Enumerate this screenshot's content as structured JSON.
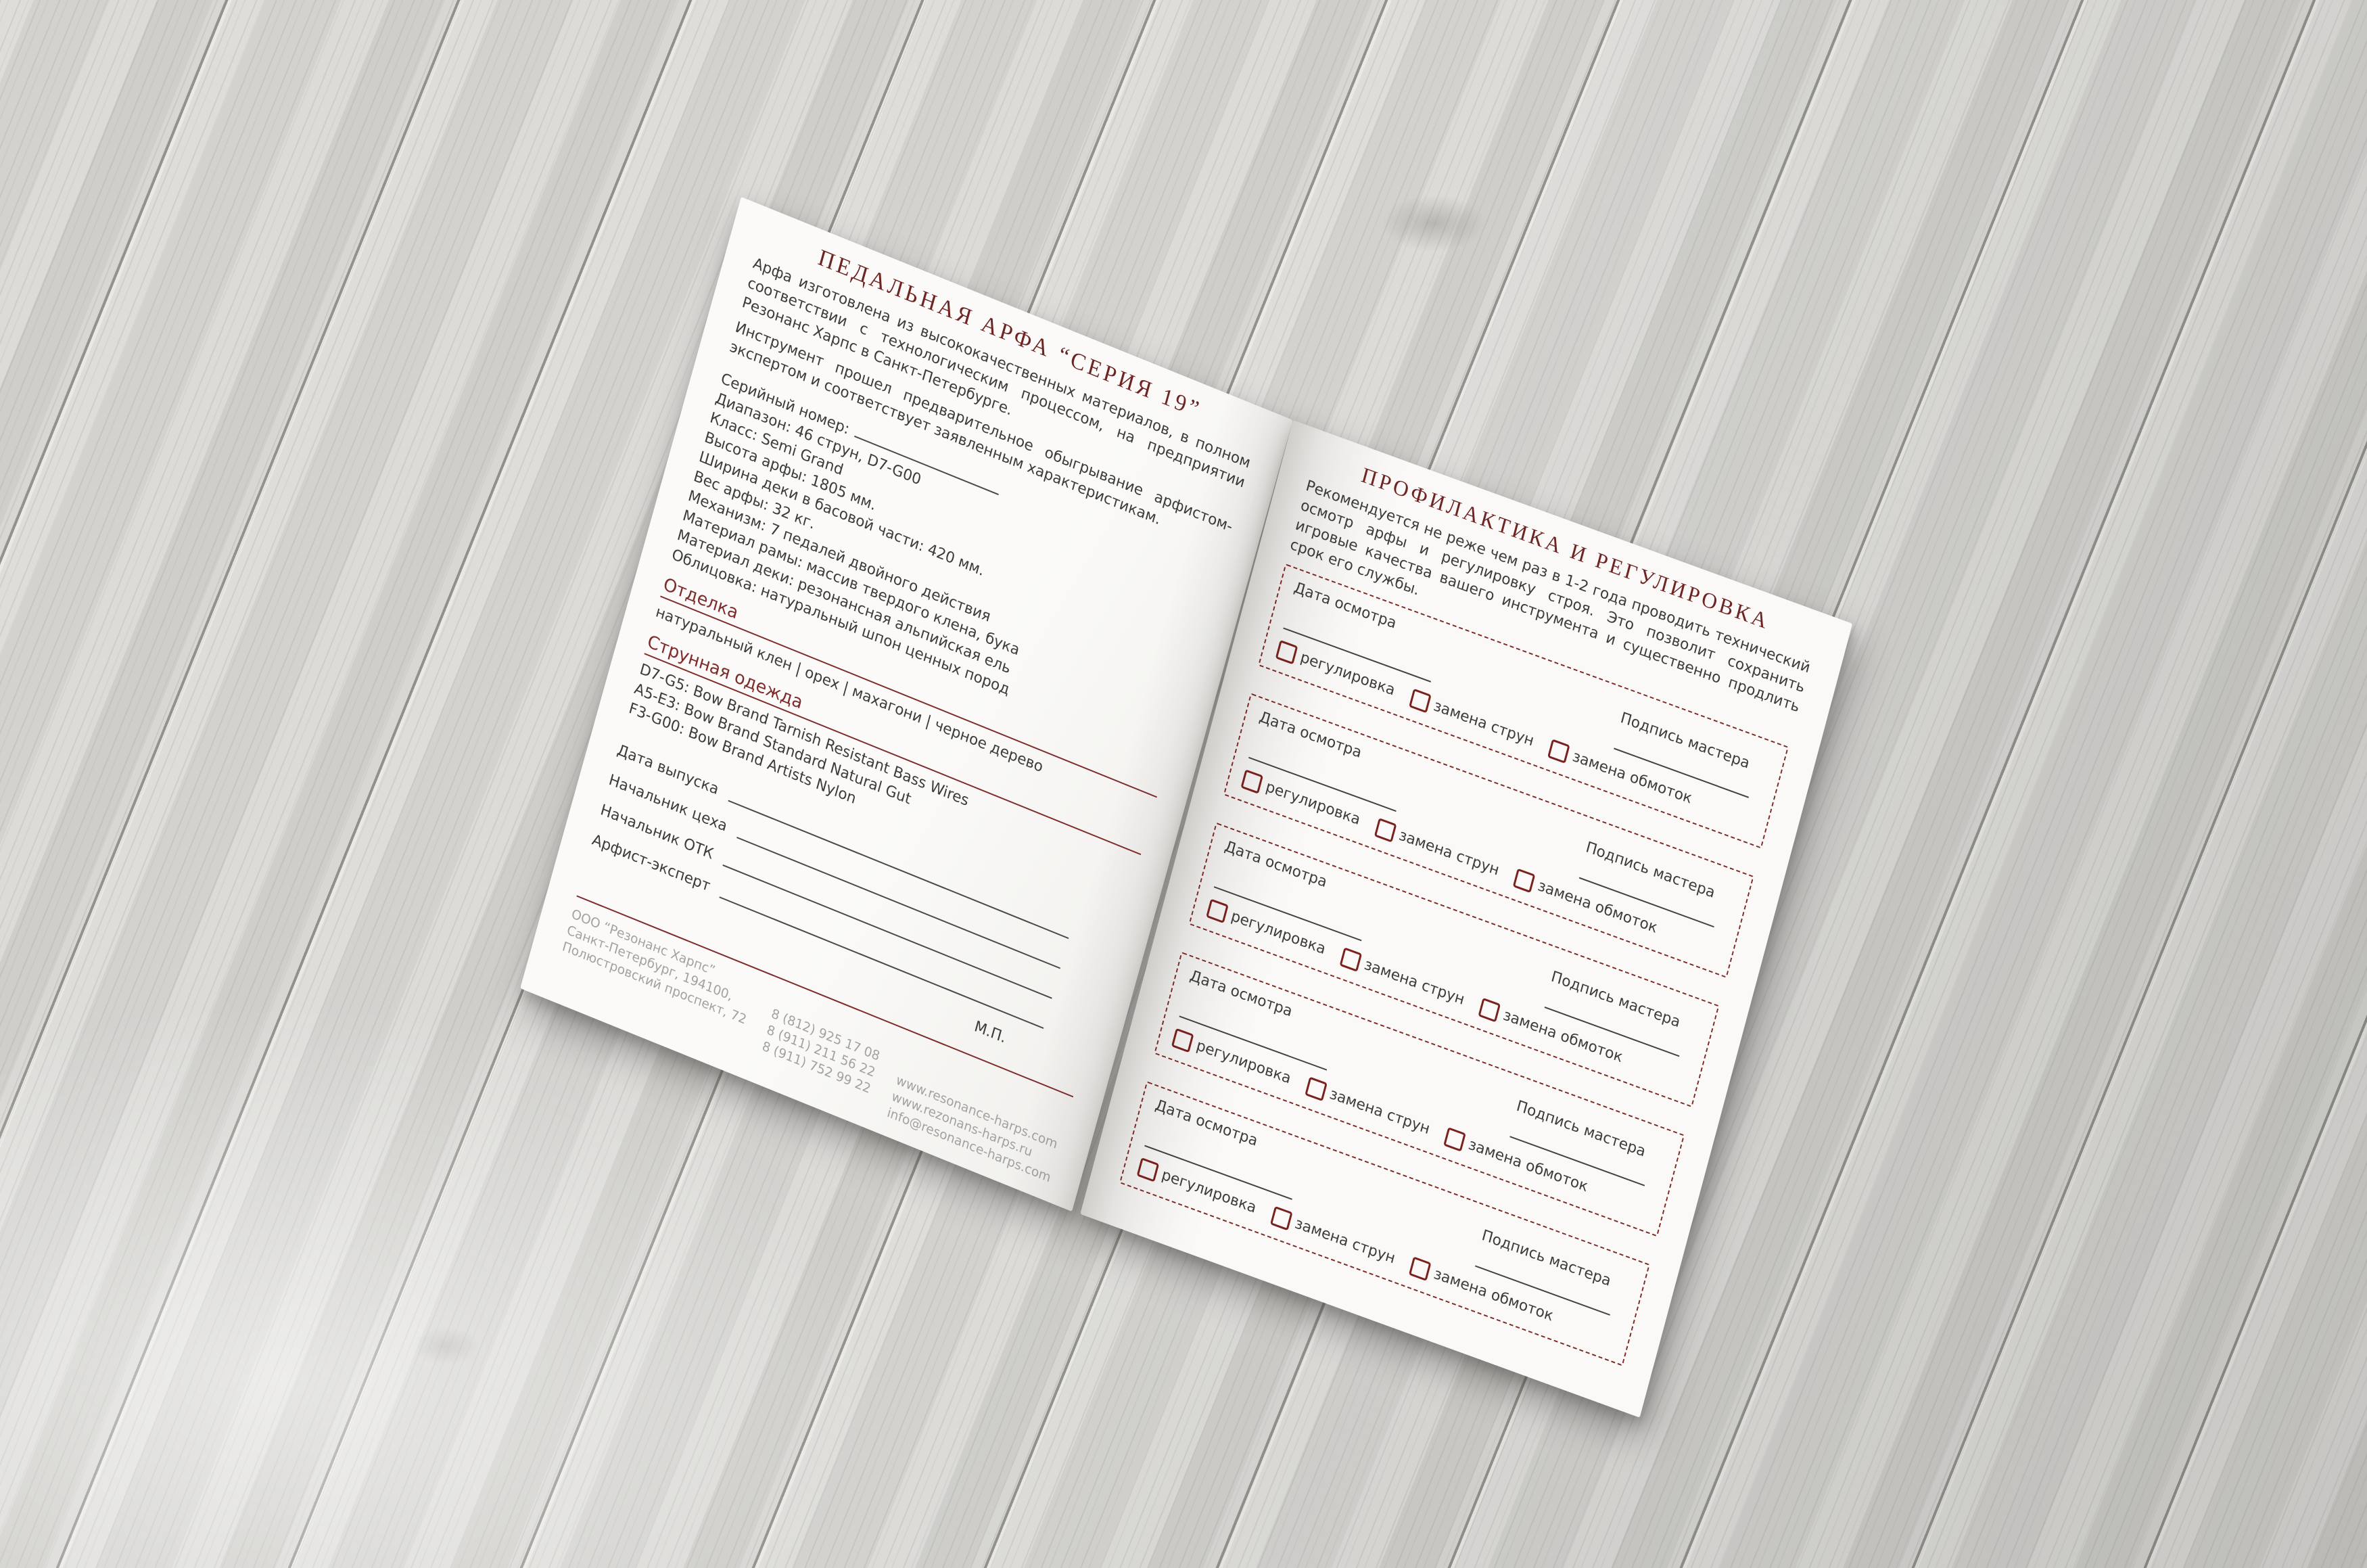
{
  "left_page": {
    "title": "ПЕДАЛЬНАЯ АРФА “СЕРИЯ 19”",
    "paragraph1": "Арфа изготовлена из высококачественных материалов, в полном соответствии с технологическим процессом, на предприятии Резонанс Харпс в Санкт-Петербурге.",
    "paragraph2": "Инструмент прошел предварительное обыгрывание арфистом-экспертом и соответствует заявленным характеристикам.",
    "serial_label": "Серийный номер:",
    "specs": [
      "Диапазон: 46 струн, D7-G00",
      "Класс: Semi Grand",
      "Высота арфы: 1805 мм.",
      "Ширина деки в басовой части: 420 мм.",
      "Вес арфы: 32 кг.",
      "Механизм: 7 педалей двойного действия",
      "Материал рамы: массив твердого клена, бука",
      "Материал деки: резонансная альпийская ель",
      "Облицовка: натуральный шпон ценных пород"
    ],
    "finish_heading": "Отделка",
    "finish_line": "натуральный клен | орех | махагони | черное дерево",
    "strings_heading": "Струнная одежда",
    "strings_lines": [
      "D7-G5: Bow Brand Tarnish Resistant Bass Wires",
      "A5-E3: Bow Brand Standard Natural Gut",
      "F3-G00: Bow Brand Artists Nylon"
    ],
    "form_fields": [
      "Дата выпуска",
      "Начальник цеха",
      "Начальник ОТК",
      "Арфист-эксперт"
    ],
    "stamp": "М.П.",
    "footer": {
      "company": "ООО “Резонанс Харпс”",
      "address_line1": "Санкт-Петербург, 194100,",
      "address_line2": "Полюстровский проспект, 72",
      "phones": [
        "8 (812) 925 17 08",
        "8 (911) 211 56 22",
        "8 (911) 752 99 22"
      ],
      "web": [
        "www.resonance-harps.com",
        "www.rezonans-harps.ru",
        "info@resonance-harps.com"
      ]
    }
  },
  "right_page": {
    "title": "ПРОФИЛАКТИКА И РЕГУЛИРОВКА",
    "paragraph": "Рекомендуется не реже чем раз в 1-2 года проводить технический осмотр арфы и регулировку строя. Это позволит сохранить игровые качества вашего инструмента и существенно продлить срок его службы.",
    "box_count": 5,
    "inspection_box": {
      "date_label": "Дата осмотра",
      "signature_label": "Подпись мастера",
      "checkboxes": [
        "регулировка",
        "замена струн",
        "замена обмоток"
      ]
    }
  },
  "colors": {
    "title_red": "#6e2422",
    "rule_red": "#7e2c2c",
    "dashed_red": "#7c2a25",
    "checkbox_red": "#7a211d",
    "body_text": "#3c3c3c",
    "muted_gray": "#a3a2a0",
    "page_white": "#faf9f7",
    "wood_gray": "#d6d5d2"
  }
}
